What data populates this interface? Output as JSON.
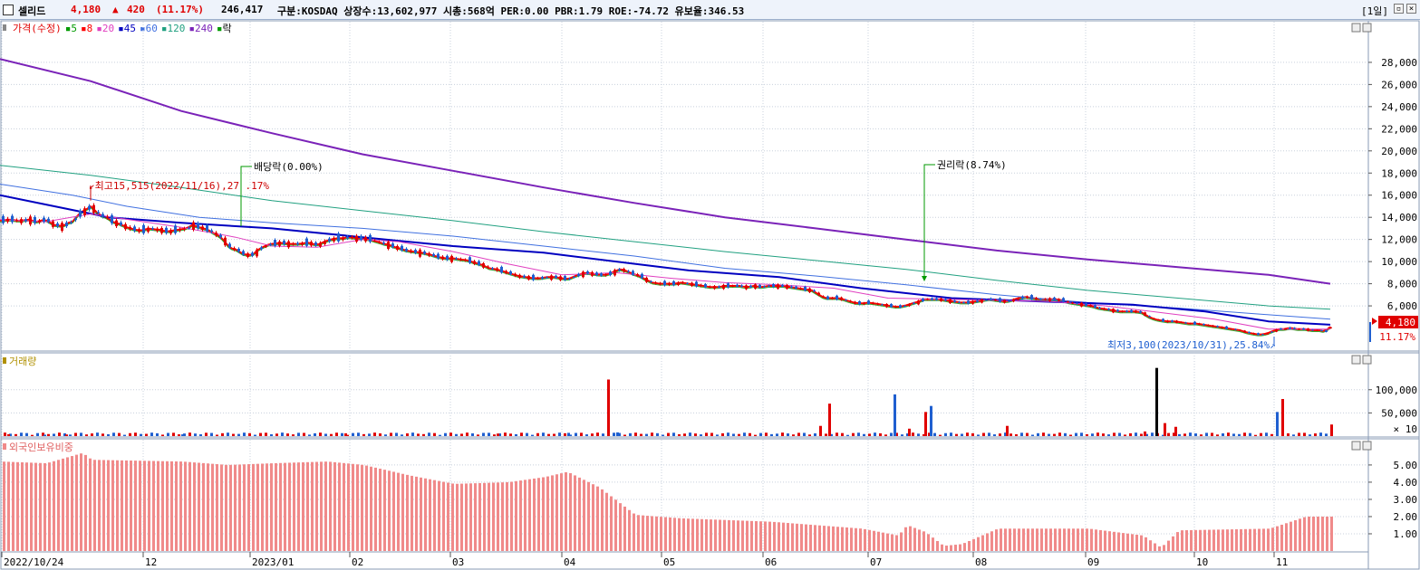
{
  "header": {
    "name": "셀리드",
    "price": "4,180",
    "change_arrow": "▲",
    "change": "420",
    "change_pct": "(11.17%)",
    "volume": "246,417",
    "info": "구분:KOSDAQ 상장수:13,602,977 시총:568억 PER:0.00 PBR:1.79 ROE:-74.72 유보율:346.53",
    "period": "[1일]"
  },
  "colors": {
    "up": "#e00000",
    "down": "#1f5fd0",
    "ma5": "#009a00",
    "ma8": "#ff0000",
    "ma20": "#e040c0",
    "ma45": "#0000c0",
    "ma60": "#4070e0",
    "ma120": "#20a080",
    "ma240": "#7a22b8",
    "foreign": "#f08a8a"
  },
  "chart_data": [
    {
      "type": "line",
      "legend": [
        "가격(수정)",
        "5",
        "8",
        "20",
        "45",
        "60",
        "120",
        "240",
        "락"
      ],
      "x_ticks": [
        "2022/10/24",
        "12",
        "2023/01",
        "02",
        "03",
        "04",
        "05",
        "06",
        "07",
        "08",
        "09",
        "10",
        "11"
      ],
      "y_ticks": [
        "28,000",
        "26,000",
        "24,000",
        "22,000",
        "20,000",
        "18,000",
        "16,000",
        "14,000",
        "12,000",
        "10,000",
        "8,000",
        "6,000"
      ],
      "ylim": [
        2000,
        30200
      ],
      "price_path_x": [
        0,
        10,
        20,
        25,
        32,
        40,
        50,
        60,
        70,
        75,
        80,
        85,
        90,
        95,
        100,
        110,
        118,
        124,
        132,
        140,
        148,
        155,
        160,
        166,
        170,
        175,
        180,
        185,
        190,
        198,
        206,
        212,
        220,
        229,
        235,
        240,
        245,
        250,
        252,
        255,
        260,
        264,
        268,
        273,
        276,
        280,
        285,
        290,
        295,
        300,
        310,
        320,
        330,
        340,
        350,
        358,
        365,
        372,
        378,
        384,
        388,
        394,
        400,
        408,
        416,
        424,
        430,
        436,
        441,
        448,
        456,
        466,
        476,
        484,
        492,
        500,
        508,
        516,
        524,
        532,
        540,
        548,
        556,
        564,
        572,
        580,
        588,
        596,
        604,
        612,
        620,
        626,
        632,
        638,
        646,
        654,
        662,
        668,
        672,
        678,
        684,
        690,
        698,
        706,
        712,
        720,
        728,
        736,
        744,
        752,
        760,
        768,
        776,
        784,
        792,
        800,
        808,
        816,
        824,
        832,
        840,
        848,
        856,
        864,
        872,
        880,
        888,
        896,
        904,
        910,
        918,
        926,
        934,
        942,
        950,
        958,
        966,
        974,
        982,
        990,
        998,
        1006,
        1014,
        1020,
        1028,
        1036,
        1044,
        1052,
        1060,
        1068,
        1076,
        1084,
        1092,
        1100,
        1110,
        1116,
        1124,
        1132,
        1140,
        1148,
        1156,
        1164,
        1172,
        1180,
        1188,
        1196,
        1204,
        1212,
        1220,
        1228,
        1236,
        1244,
        1252,
        1260,
        1268,
        1274,
        1280,
        1288,
        1296,
        1304,
        1312,
        1320,
        1328,
        1336,
        1344,
        1352,
        1360,
        1368,
        1376,
        1382,
        1390,
        1398,
        1404,
        1410,
        1416,
        1424,
        1432,
        1440,
        1448,
        1456,
        1462,
        1468
      ],
      "price_path": [
        13700,
        13800,
        13700,
        13700,
        13800,
        13600,
        13800,
        13300,
        13200,
        13500,
        13600,
        14100,
        14500,
        14700,
        15000,
        14200,
        14000,
        13600,
        13400,
        13100,
        12900,
        12800,
        12900,
        13000,
        12900,
        12900,
        12800,
        12700,
        12800,
        12900,
        13000,
        13300,
        13100,
        12900,
        12600,
        12400,
        12100,
        11600,
        11400,
        11200,
        11100,
        10900,
        10700,
        10600,
        10600,
        10700,
        11100,
        11300,
        11500,
        11600,
        11700,
        11600,
        11600,
        11700,
        11500,
        11800,
        12000,
        12100,
        12100,
        12200,
        12200,
        12100,
        12100,
        12000,
        11800,
        11600,
        11500,
        11300,
        11200,
        11000,
        10900,
        10800,
        10600,
        10400,
        10300,
        10300,
        10200,
        10100,
        9900,
        9700,
        9400,
        9300,
        9100,
        8900,
        8700,
        8600,
        8500,
        8500,
        8600,
        8600,
        8500,
        8400,
        8600,
        8800,
        9000,
        8900,
        8800,
        8800,
        8900,
        9100,
        9300,
        9200,
        8900,
        8700,
        8400,
        8100,
        8000,
        8000,
        8000,
        8100,
        8000,
        7900,
        7800,
        7700,
        7700,
        7800,
        7800,
        7800,
        7700,
        7800,
        7700,
        7800,
        7800,
        7800,
        7700,
        7600,
        7500,
        7400,
        7000,
        6700,
        6700,
        6700,
        6500,
        6300,
        6200,
        6300,
        6200,
        6100,
        6000,
        5900,
        6000,
        6200,
        6400,
        6600,
        6600,
        6600,
        6500,
        6400,
        6300,
        6300,
        6400,
        6500,
        6600,
        6500,
        6400,
        6500,
        6700,
        6800,
        6700,
        6600,
        6600,
        6600,
        6500,
        6300,
        6200,
        6100,
        6000,
        5800,
        5700,
        5600,
        5500,
        5500,
        5500,
        5400,
        5000,
        4800,
        4700,
        4600,
        4600,
        4500,
        4400,
        4400,
        4300,
        4200,
        4100,
        4000,
        3900,
        3800,
        3600,
        3500,
        3400,
        3500,
        3700,
        3900,
        3900,
        4000,
        3900,
        3900,
        3800,
        3800,
        3700,
        4100
      ],
      "series": [
        {
          "name": "240",
          "values": [
            [
              0,
              28300
            ],
            [
              100,
              26300
            ],
            [
              200,
              23600
            ],
            [
              300,
              21600
            ],
            [
              400,
              19700
            ],
            [
              500,
              18200
            ],
            [
              600,
              16700
            ],
            [
              700,
              15300
            ],
            [
              800,
              14000
            ],
            [
              900,
              13000
            ],
            [
              1000,
              12000
            ],
            [
              1100,
              11000
            ],
            [
              1200,
              10200
            ],
            [
              1300,
              9500
            ],
            [
              1400,
              8800
            ],
            [
              1468,
              8000
            ]
          ]
        },
        {
          "name": "120",
          "values": [
            [
              0,
              18700
            ],
            [
              100,
              17800
            ],
            [
              200,
              16700
            ],
            [
              300,
              15500
            ],
            [
              400,
              14600
            ],
            [
              500,
              13700
            ],
            [
              600,
              12700
            ],
            [
              700,
              11800
            ],
            [
              800,
              10900
            ],
            [
              900,
              10100
            ],
            [
              1000,
              9300
            ],
            [
              1100,
              8300
            ],
            [
              1200,
              7400
            ],
            [
              1300,
              6700
            ],
            [
              1400,
              6000
            ],
            [
              1468,
              5700
            ]
          ]
        },
        {
          "name": "60",
          "values": [
            [
              0,
              17000
            ],
            [
              80,
              16000
            ],
            [
              140,
              15000
            ],
            [
              220,
              14000
            ],
            [
              300,
              13500
            ],
            [
              400,
              13000
            ],
            [
              500,
              12300
            ],
            [
              600,
              11400
            ],
            [
              700,
              10500
            ],
            [
              800,
              9400
            ],
            [
              900,
              8700
            ],
            [
              1000,
              7900
            ],
            [
              1100,
              7000
            ],
            [
              1200,
              6300
            ],
            [
              1300,
              5800
            ],
            [
              1400,
              5200
            ],
            [
              1468,
              4800
            ]
          ]
        },
        {
          "name": "45",
          "values": [
            [
              0,
              16000
            ],
            [
              60,
              15000
            ],
            [
              120,
              14000
            ],
            [
              200,
              13500
            ],
            [
              300,
              13000
            ],
            [
              400,
              12200
            ],
            [
              500,
              11400
            ],
            [
              600,
              10800
            ],
            [
              680,
              10000
            ],
            [
              760,
              9200
            ],
            [
              860,
              8600
            ],
            [
              950,
              7600
            ],
            [
              1050,
              6700
            ],
            [
              1150,
              6400
            ],
            [
              1250,
              6100
            ],
            [
              1330,
              5500
            ],
            [
              1400,
              4600
            ],
            [
              1468,
              4300
            ]
          ]
        },
        {
          "name": "20",
          "values": [
            [
              0,
              13800
            ],
            [
              50,
              13600
            ],
            [
              100,
              14300
            ],
            [
              150,
              13700
            ],
            [
              200,
              13100
            ],
            [
              260,
              12200
            ],
            [
              300,
              11400
            ],
            [
              350,
              11300
            ],
            [
              400,
              12000
            ],
            [
              440,
              11800
            ],
            [
              500,
              10900
            ],
            [
              560,
              9800
            ],
            [
              620,
              8800
            ],
            [
              680,
              9000
            ],
            [
              740,
              8500
            ],
            [
              800,
              8100
            ],
            [
              860,
              7900
            ],
            [
              920,
              7600
            ],
            [
              980,
              6700
            ],
            [
              1040,
              6600
            ],
            [
              1100,
              6500
            ],
            [
              1160,
              6400
            ],
            [
              1220,
              6000
            ],
            [
              1280,
              5400
            ],
            [
              1340,
              4800
            ],
            [
              1400,
              3900
            ],
            [
              1468,
              3900
            ]
          ]
        }
      ],
      "annotations": [
        {
          "label": "최고15,515(2022/11/16),27 .17%",
          "x": 100,
          "y": 15515
        },
        {
          "label": "배당락(0.00%)",
          "x": 266,
          "y": 12000
        },
        {
          "label": "권리락(8.74%)",
          "x": 1020,
          "y": 8500
        },
        {
          "label": "최저3,100(2023/10/31),25.84%",
          "x": 1405,
          "y": 3100
        }
      ],
      "last_price_label": "4,180",
      "last_change_label": "11.17%"
    },
    {
      "type": "bar",
      "legend": [
        "거래량"
      ],
      "y_ticks": [
        "100,000",
        "50,000"
      ],
      "unit_label": "× 10",
      "ylim": [
        0,
        160000
      ],
      "x": [
        8,
        48,
        72,
        100,
        200,
        380,
        548,
        626,
        640,
        670,
        680,
        904,
        914,
        986,
        1002,
        1020,
        1026,
        1110,
        1262,
        1275,
        1284,
        1296,
        1408,
        1414,
        1468
      ],
      "values": [
        4000,
        3000,
        3500,
        4200,
        3800,
        6000,
        5500,
        7000,
        5000,
        122000,
        8000,
        22000,
        70000,
        90000,
        16000,
        52000,
        65000,
        22000,
        10000,
        147000,
        28000,
        20000,
        52000,
        80000,
        25000
      ]
    },
    {
      "type": "bar",
      "legend": [
        "외국인보유비중"
      ],
      "y_ticks": [
        "5.00",
        "4.00",
        "3.00",
        "2.00",
        "1.00"
      ],
      "ylim": [
        0,
        6.1
      ],
      "x": [
        0,
        50,
        90,
        100,
        200,
        250,
        300,
        360,
        400,
        450,
        500,
        560,
        600,
        625,
        660,
        680,
        700,
        750,
        850,
        950,
        990,
        1000,
        1020,
        1040,
        1060,
        1100,
        1200,
        1260,
        1280,
        1300,
        1400,
        1440,
        1470
      ],
      "values": [
        5.2,
        5.1,
        5.7,
        5.3,
        5.2,
        5.0,
        5.1,
        5.2,
        5.0,
        4.4,
        3.9,
        4.0,
        4.3,
        4.6,
        3.7,
        2.9,
        2.1,
        1.9,
        1.7,
        1.3,
        0.9,
        1.5,
        1.1,
        0.3,
        0.4,
        1.3,
        1.3,
        0.9,
        0.2,
        1.2,
        1.3,
        2.0,
        2.0
      ]
    }
  ]
}
